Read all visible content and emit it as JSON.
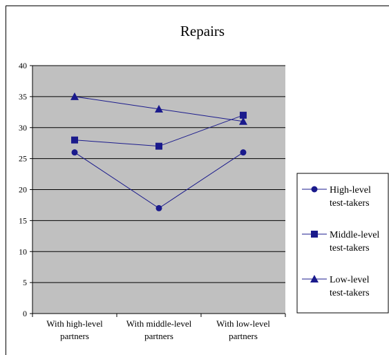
{
  "chart_data": {
    "type": "line",
    "title": "Repairs",
    "categories": [
      [
        "With high-level",
        "partners"
      ],
      [
        "With middle-level",
        "partners"
      ],
      [
        "With low-level",
        "partners"
      ]
    ],
    "ylim": [
      0,
      40
    ],
    "yticks": [
      0,
      5,
      10,
      15,
      20,
      25,
      30,
      35,
      40
    ],
    "grid": true,
    "legend_position": "right",
    "colors": {
      "series": "#1a1a8c",
      "plot_bg": "#c0c0c0",
      "grid": "#000000"
    },
    "series": [
      {
        "name": [
          "High-level",
          "test-takers"
        ],
        "marker": "circle",
        "values": [
          26,
          17,
          26
        ]
      },
      {
        "name": [
          "Middle-level",
          "test-takers"
        ],
        "marker": "square",
        "values": [
          28,
          27,
          32
        ]
      },
      {
        "name": [
          "Low-level",
          "test-takers"
        ],
        "marker": "triangle",
        "values": [
          35,
          33,
          31
        ]
      }
    ]
  }
}
